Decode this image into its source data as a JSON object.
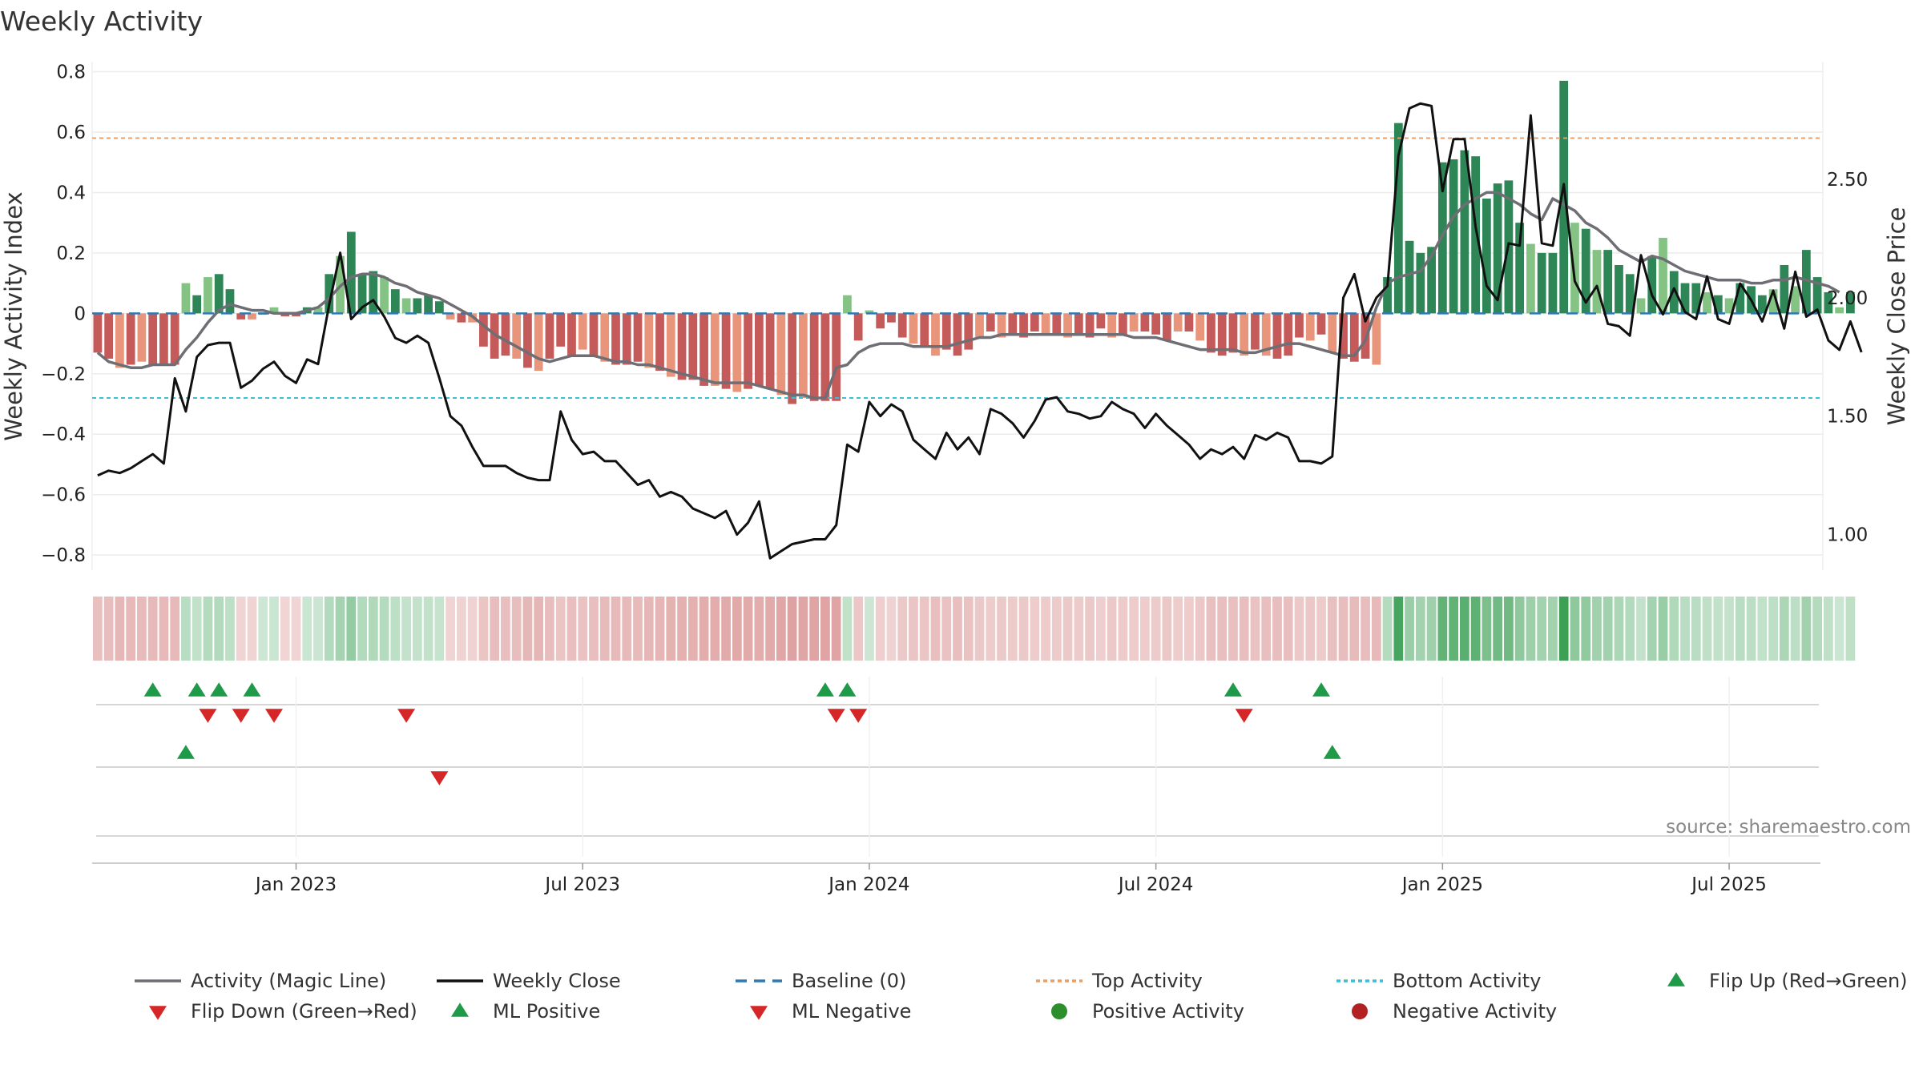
{
  "chart_data": {
    "type": "bar+line",
    "title": "Weekly Activity",
    "ylabel_left": "Weekly Activity Index",
    "ylabel_right": "Weekly Close Price",
    "source": "source: sharemaestro.com",
    "ylim_left": [
      -0.85,
      0.82
    ],
    "ylim_right": [
      0.85,
      2.98
    ],
    "yticks_left": [
      {
        "v": 0.8,
        "label": "0.8"
      },
      {
        "v": 0.6,
        "label": "0.6"
      },
      {
        "v": 0.4,
        "label": "0.4"
      },
      {
        "v": 0.2,
        "label": "0.2"
      },
      {
        "v": 0,
        "label": "0"
      },
      {
        "v": -0.2,
        "label": "−0.2"
      },
      {
        "v": -0.4,
        "label": "−0.4"
      },
      {
        "v": -0.6,
        "label": "−0.6"
      },
      {
        "v": -0.8,
        "label": "−0.8"
      }
    ],
    "yticks_right": [
      {
        "v": 2.5,
        "label": "2.50"
      },
      {
        "v": 2.0,
        "label": "2.00"
      },
      {
        "v": 1.5,
        "label": "1.50"
      },
      {
        "v": 1.0,
        "label": "1.00"
      }
    ],
    "x_ticks": [
      {
        "week": 18,
        "label": "Jan 2023"
      },
      {
        "week": 44,
        "label": "Jul 2023"
      },
      {
        "week": 70,
        "label": "Jan 2024"
      },
      {
        "week": 96,
        "label": "Jul 2024"
      },
      {
        "week": 122,
        "label": "Jan 2025"
      },
      {
        "week": 148,
        "label": "Jul 2025"
      }
    ],
    "n_weeks": 157,
    "activity": [
      -0.13,
      -0.15,
      -0.18,
      -0.17,
      -0.16,
      -0.17,
      -0.17,
      -0.17,
      0.1,
      0.06,
      0.12,
      0.13,
      0.08,
      -0.02,
      -0.02,
      0,
      0.02,
      -0.01,
      -0.01,
      0.02,
      0.02,
      0.13,
      0.19,
      0.27,
      0.13,
      0.14,
      0.12,
      0.08,
      0.05,
      0.05,
      0.06,
      0.04,
      -0.02,
      -0.03,
      -0.03,
      -0.11,
      -0.15,
      -0.14,
      -0.15,
      -0.18,
      -0.19,
      -0.15,
      -0.11,
      -0.14,
      -0.12,
      -0.14,
      -0.16,
      -0.17,
      -0.17,
      -0.16,
      -0.18,
      -0.19,
      -0.21,
      -0.22,
      -0.22,
      -0.24,
      -0.24,
      -0.25,
      -0.26,
      -0.25,
      -0.24,
      -0.25,
      -0.27,
      -0.3,
      -0.28,
      -0.29,
      -0.29,
      -0.29,
      0.06,
      -0.09,
      0.01,
      -0.05,
      -0.03,
      -0.08,
      -0.1,
      -0.11,
      -0.14,
      -0.12,
      -0.14,
      -0.12,
      -0.08,
      -0.06,
      -0.08,
      -0.07,
      -0.08,
      -0.06,
      -0.07,
      -0.07,
      -0.08,
      -0.07,
      -0.08,
      -0.05,
      -0.08,
      -0.07,
      -0.06,
      -0.06,
      -0.07,
      -0.09,
      -0.06,
      -0.06,
      -0.09,
      -0.13,
      -0.14,
      -0.13,
      -0.14,
      -0.12,
      -0.14,
      -0.15,
      -0.14,
      -0.08,
      -0.09,
      -0.07,
      -0.13,
      -0.15,
      -0.16,
      -0.15,
      -0.17,
      0.12,
      0.63,
      0.24,
      0.2,
      0.22,
      0.5,
      0.51,
      0.54,
      0.52,
      0.38,
      0.43,
      0.44,
      0.3,
      0.23,
      0.2,
      0.2,
      0.77,
      0.3,
      0.28,
      0.21,
      0.21,
      0.16,
      0.13,
      0.05,
      0.19,
      0.25,
      0.14,
      0.1,
      0.1,
      0.07,
      0.06,
      0.05,
      0.1,
      0.09,
      0.06,
      0.08,
      0.16,
      0.09,
      0.21,
      0.12,
      0.07,
      0.02,
      0.07
    ],
    "magic_line": [
      -0.13,
      -0.16,
      -0.17,
      -0.18,
      -0.18,
      -0.17,
      -0.17,
      -0.17,
      -0.12,
      -0.08,
      -0.03,
      0.01,
      0.03,
      0.02,
      0.01,
      0.01,
      0,
      0,
      0,
      0.01,
      0.02,
      0.05,
      0.09,
      0.12,
      0.13,
      0.13,
      0.12,
      0.1,
      0.09,
      0.07,
      0.06,
      0.05,
      0.03,
      0.01,
      -0.01,
      -0.04,
      -0.07,
      -0.09,
      -0.11,
      -0.13,
      -0.15,
      -0.16,
      -0.15,
      -0.14,
      -0.14,
      -0.14,
      -0.15,
      -0.16,
      -0.16,
      -0.17,
      -0.17,
      -0.18,
      -0.19,
      -0.2,
      -0.21,
      -0.22,
      -0.23,
      -0.23,
      -0.23,
      -0.23,
      -0.24,
      -0.25,
      -0.26,
      -0.27,
      -0.27,
      -0.28,
      -0.28,
      -0.18,
      -0.17,
      -0.13,
      -0.11,
      -0.1,
      -0.1,
      -0.1,
      -0.11,
      -0.11,
      -0.11,
      -0.11,
      -0.1,
      -0.09,
      -0.08,
      -0.08,
      -0.07,
      -0.07,
      -0.07,
      -0.07,
      -0.07,
      -0.07,
      -0.07,
      -0.07,
      -0.07,
      -0.07,
      -0.07,
      -0.07,
      -0.08,
      -0.08,
      -0.08,
      -0.09,
      -0.1,
      -0.11,
      -0.12,
      -0.12,
      -0.12,
      -0.12,
      -0.13,
      -0.13,
      -0.12,
      -0.11,
      -0.1,
      -0.1,
      -0.11,
      -0.12,
      -0.13,
      -0.14,
      -0.14,
      -0.09,
      0.02,
      0.1,
      0.12,
      0.13,
      0.14,
      0.19,
      0.26,
      0.32,
      0.36,
      0.38,
      0.4,
      0.4,
      0.38,
      0.36,
      0.33,
      0.31,
      0.38,
      0.36,
      0.34,
      0.3,
      0.28,
      0.25,
      0.21,
      0.19,
      0.17,
      0.19,
      0.18,
      0.16,
      0.14,
      0.13,
      0.12,
      0.11,
      0.11,
      0.11,
      0.1,
      0.1,
      0.11,
      0.11,
      0.12,
      0.11,
      0.1,
      0.09,
      0.07
    ],
    "close": [
      1.25,
      1.27,
      1.26,
      1.28,
      1.31,
      1.34,
      1.3,
      1.66,
      1.52,
      1.75,
      1.8,
      1.81,
      1.81,
      1.62,
      1.65,
      1.7,
      1.73,
      1.67,
      1.64,
      1.74,
      1.72,
      1.97,
      2.19,
      1.91,
      1.96,
      1.99,
      1.92,
      1.83,
      1.81,
      1.84,
      1.81,
      1.66,
      1.5,
      1.46,
      1.37,
      1.29,
      1.29,
      1.29,
      1.26,
      1.24,
      1.23,
      1.23,
      1.52,
      1.4,
      1.34,
      1.35,
      1.31,
      1.31,
      1.26,
      1.21,
      1.23,
      1.16,
      1.18,
      1.16,
      1.11,
      1.09,
      1.07,
      1.1,
      1.0,
      1.05,
      1.14,
      0.9,
      0.93,
      0.96,
      0.97,
      0.98,
      0.98,
      1.04,
      1.38,
      1.35,
      1.56,
      1.5,
      1.55,
      1.52,
      1.4,
      1.36,
      1.32,
      1.43,
      1.36,
      1.41,
      1.34,
      1.53,
      1.51,
      1.47,
      1.41,
      1.48,
      1.57,
      1.58,
      1.52,
      1.51,
      1.49,
      1.5,
      1.56,
      1.53,
      1.51,
      1.45,
      1.51,
      1.46,
      1.42,
      1.38,
      1.32,
      1.36,
      1.34,
      1.37,
      1.32,
      1.42,
      1.4,
      1.43,
      1.41,
      1.31,
      1.31,
      1.3,
      1.33,
      2.0,
      2.1,
      1.9,
      2.0,
      2.05,
      2.6,
      2.8,
      2.82,
      2.81,
      2.45,
      2.67,
      2.67,
      2.3,
      2.05,
      1.99,
      2.23,
      2.22,
      2.77,
      2.23,
      2.22,
      2.48,
      2.07,
      1.98,
      2.05,
      1.89,
      1.88,
      1.84,
      2.18,
      2.01,
      1.93,
      2.04,
      1.94,
      1.91,
      2.09,
      1.91,
      1.89,
      2.06,
      1.99,
      1.9,
      2.03,
      1.87,
      2.11,
      1.92,
      1.95,
      1.82,
      1.78,
      1.9,
      1.77
    ],
    "flips_row1": {
      "up": [
        {
          "week": 5,
          "label": "▲"
        },
        {
          "week": 9,
          "label": "▲"
        },
        {
          "week": 11,
          "label": "▲"
        },
        {
          "week": 14,
          "label": "▲"
        },
        {
          "week": 66,
          "label": "▲"
        },
        {
          "week": 68,
          "label": "▲"
        },
        {
          "week": 103,
          "label": "▲"
        },
        {
          "week": 111,
          "label": "▲"
        }
      ],
      "down": [
        {
          "week": 10,
          "label": "▼"
        },
        {
          "week": 13,
          "label": "▼"
        },
        {
          "week": 16,
          "label": "▼"
        },
        {
          "week": 28,
          "label": "▼"
        },
        {
          "week": 67,
          "label": "▼"
        },
        {
          "week": 69,
          "label": "▼"
        },
        {
          "week": 104,
          "label": "▼"
        }
      ]
    },
    "flips_row2": {
      "up": [
        {
          "week": 8,
          "label": "▲"
        },
        {
          "week": 112,
          "label": "▲"
        }
      ],
      "down": [
        {
          "week": 31,
          "label": "▼"
        }
      ]
    },
    "top_activity": 0.58,
    "bottom_activity": -0.28
  },
  "legend": [
    {
      "label": "Activity (Magic Line)",
      "key": "line",
      "color": "#6e6e74",
      "dash": ""
    },
    {
      "label": "Weekly Close",
      "key": "line",
      "color": "#111111",
      "dash": ""
    },
    {
      "label": "Baseline (0)",
      "key": "line",
      "color": "#2f79b5",
      "dash": "14 9"
    },
    {
      "label": "Top Activity",
      "key": "line",
      "color": "#e8a06a",
      "dash": "5 4"
    },
    {
      "label": "Bottom Activity",
      "key": "line",
      "color": "#3bbfd6",
      "dash": "5 4"
    },
    {
      "label": "Flip Up (Red→Green)",
      "key": "tri-up",
      "color": "#1f9a48",
      "dash": ""
    },
    {
      "label": "Flip Down (Green→Red)",
      "key": "tri-down",
      "color": "#d62728",
      "dash": ""
    },
    {
      "label": "ML Positive",
      "key": "tri-up",
      "color": "#1f9a48",
      "dash": ""
    },
    {
      "label": "ML Negative",
      "key": "tri-down",
      "color": "#d62728",
      "dash": ""
    },
    {
      "label": "Positive Activity",
      "key": "dot",
      "color": "#2c8f2c",
      "dash": ""
    },
    {
      "label": "Negative Activity",
      "key": "dot",
      "color": "#b22222",
      "dash": ""
    }
  ]
}
